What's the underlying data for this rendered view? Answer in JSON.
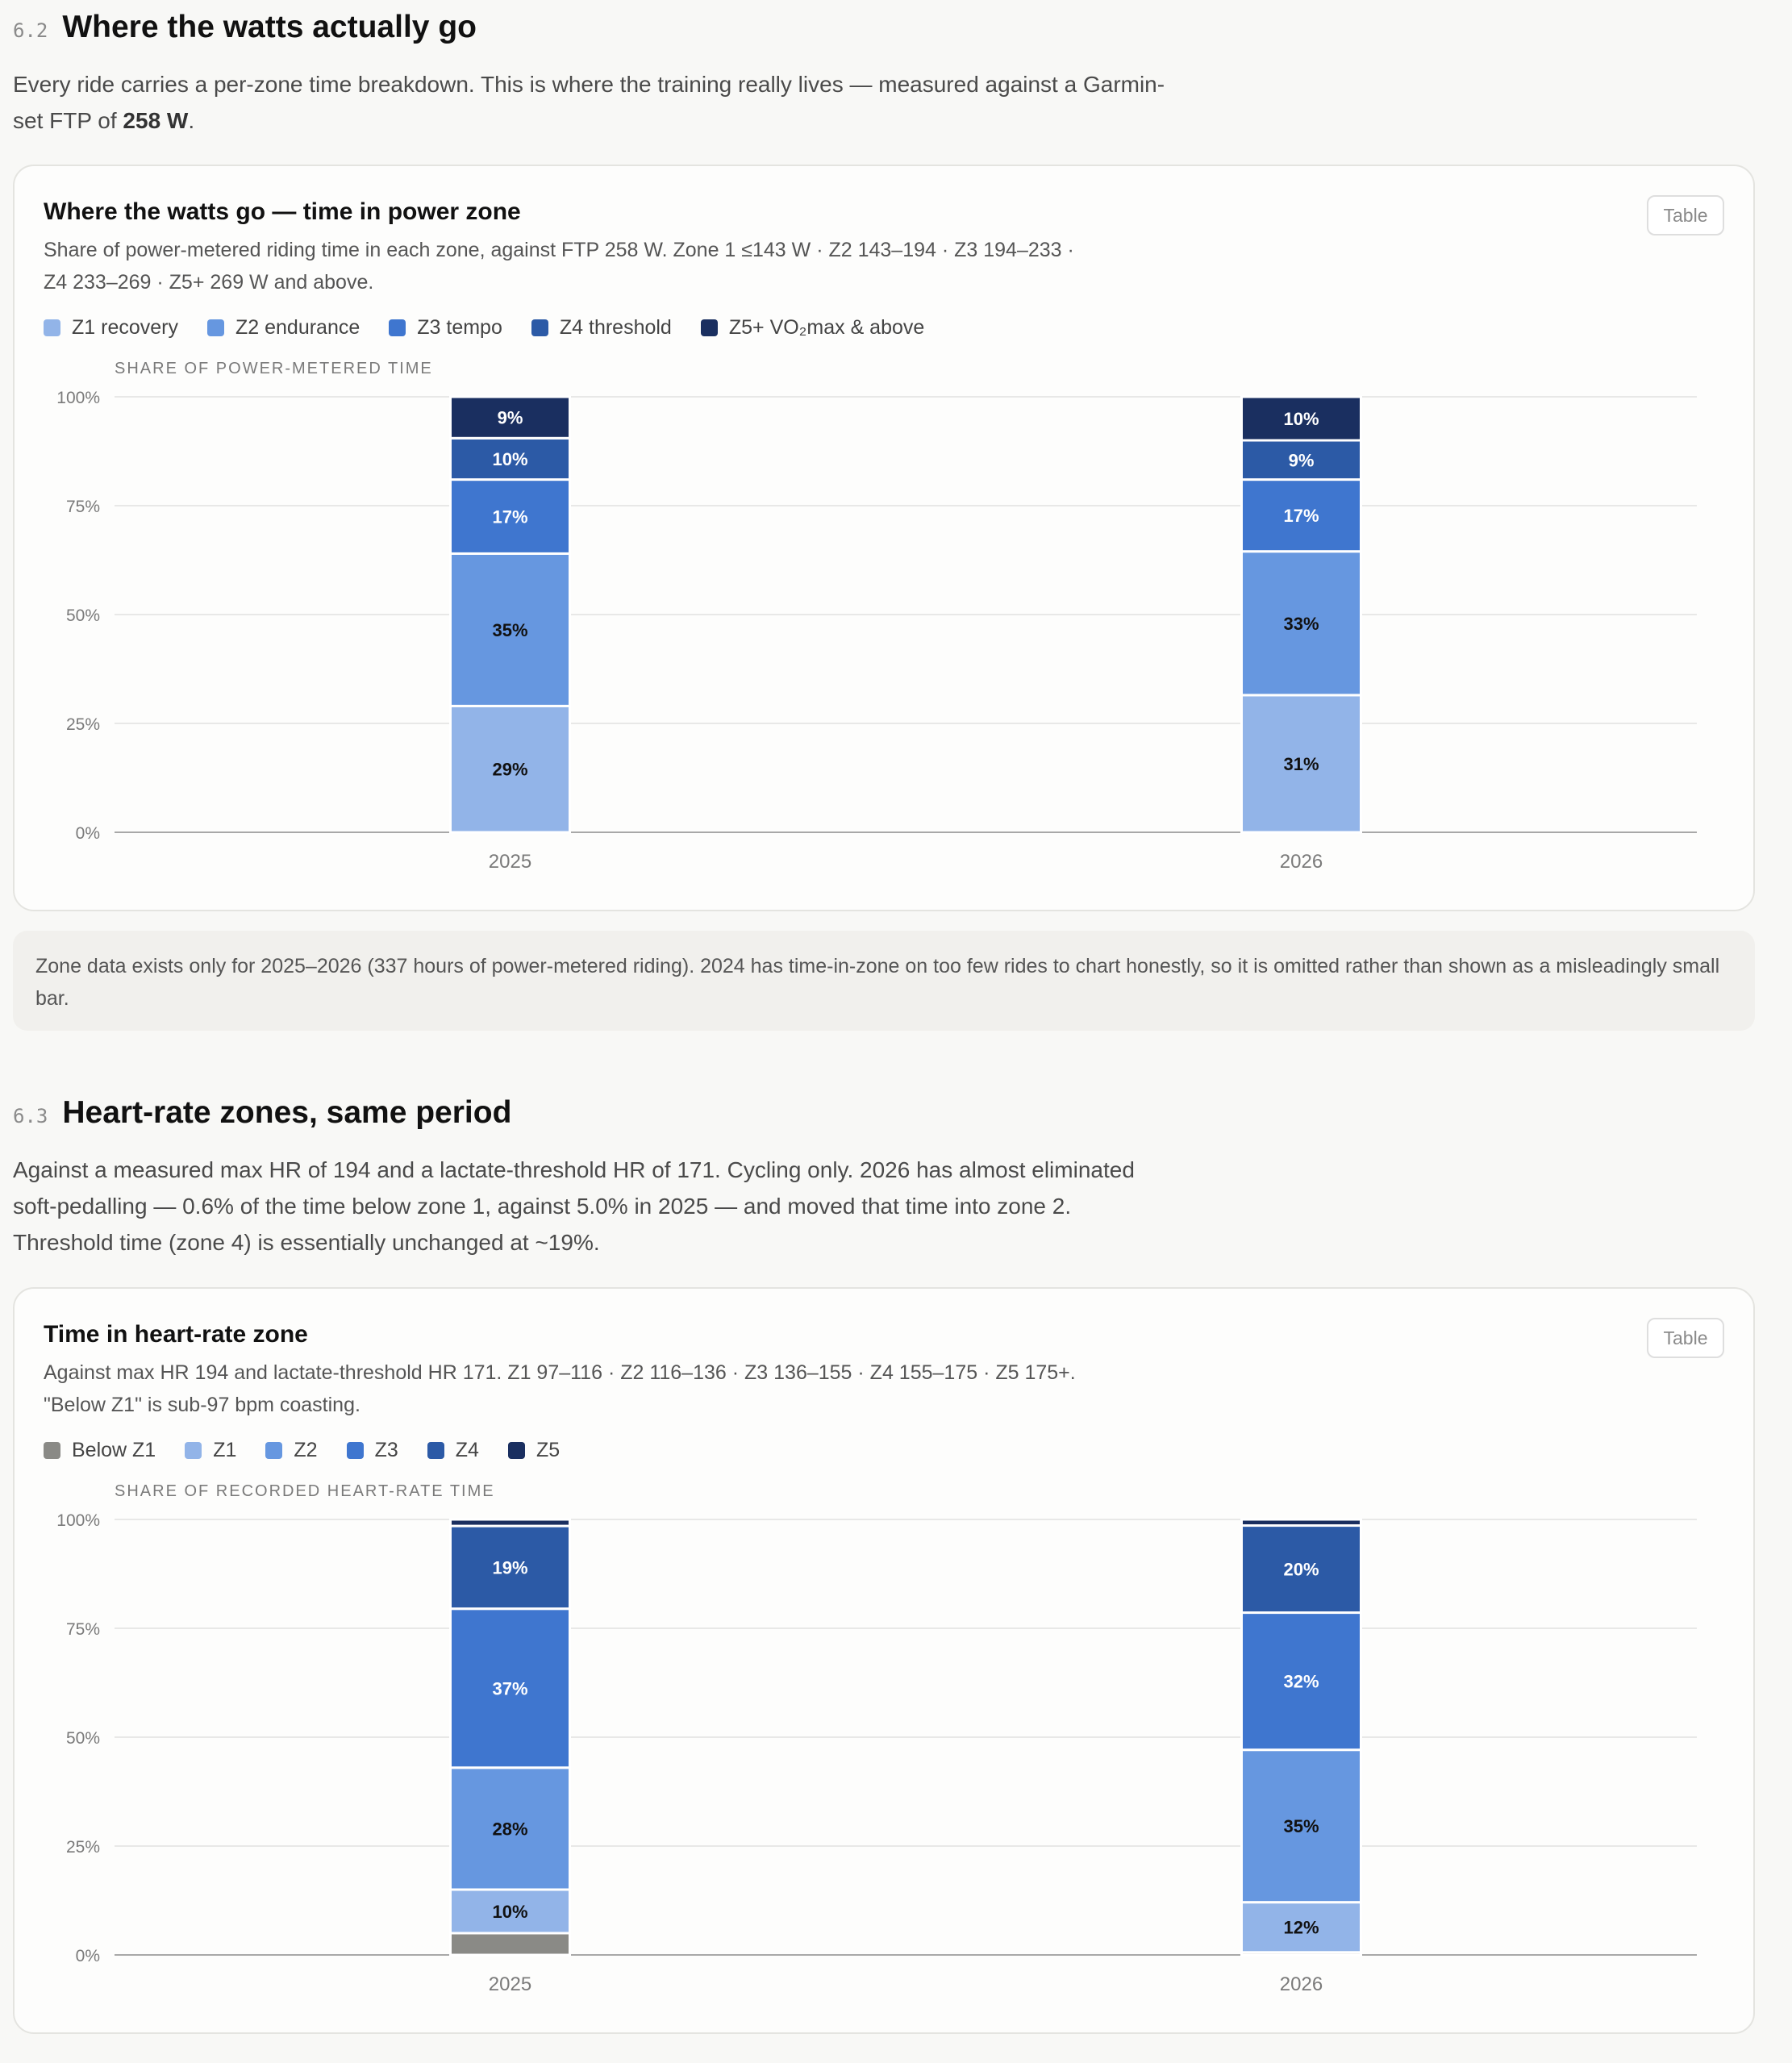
{
  "section_62": {
    "number": "6.2",
    "title": "Where the watts actually go",
    "lead_before": "Every ride carries a per-zone time breakdown. This is where the training really lives — measured against a Garmin-set FTP of ",
    "lead_bold": "258 W",
    "lead_after": "."
  },
  "power_card": {
    "title": "Where the watts go — time in power zone",
    "subtitle": "Share of power-metered riding time in each zone, against FTP 258 W. Zone 1 ≤143 W · Z2 143–194 · Z3 194–233 · Z4 233–269 · Z5+ 269 W and above.",
    "table_label": "Table",
    "y_axis_label": "SHARE OF POWER-METERED TIME",
    "legend": [
      "Z1 recovery",
      "Z2 endurance",
      "Z3 tempo",
      "Z4 threshold",
      "Z5+ VO₂max & above"
    ]
  },
  "note": "Zone data exists only for 2025–2026 (337 hours of power-metered riding). 2024 has time-in-zone on too few rides to chart honestly, so it is omitted rather than shown as a misleadingly small bar.",
  "section_63": {
    "number": "6.3",
    "title": "Heart-rate zones, same period",
    "lead": "Against a measured max HR of 194 and a lactate-threshold HR of 171. Cycling only. 2026 has almost eliminated soft-pedalling — 0.6% of the time below zone 1, against 5.0% in 2025 — and moved that time into zone 2. Threshold time (zone 4) is essentially unchanged at ~19%."
  },
  "hr_card": {
    "title": "Time in heart-rate zone",
    "subtitle": "Against max HR 194 and lactate-threshold HR 171. Z1 97–116 · Z2 116–136 · Z3 136–155 · Z4 155–175 · Z5 175+. \"Below Z1\" is sub-97 bpm coasting.",
    "table_label": "Table",
    "y_axis_label": "SHARE OF RECORDED HEART-RATE TIME",
    "legend": [
      "Below Z1",
      "Z1",
      "Z2",
      "Z3",
      "Z4",
      "Z5"
    ]
  },
  "chart_data": [
    {
      "type": "bar",
      "stacked": true,
      "title": "Where the watts go — time in power zone",
      "ylabel": "SHARE OF POWER-METERED TIME",
      "categories": [
        "2025",
        "2026"
      ],
      "ylim": [
        0,
        100
      ],
      "yticks": [
        "0%",
        "25%",
        "50%",
        "75%",
        "100%"
      ],
      "grid": true,
      "legend_position": "top-left",
      "series": [
        {
          "name": "Z1 recovery",
          "values": [
            29,
            31.5
          ],
          "labels": [
            "29%",
            "31%"
          ],
          "color": "#92b4e8",
          "text_color": "#111"
        },
        {
          "name": "Z2 endurance",
          "values": [
            35,
            33
          ],
          "labels": [
            "35%",
            "33%"
          ],
          "color": "#6697e0",
          "text_color": "#111"
        },
        {
          "name": "Z3 tempo",
          "values": [
            17,
            16.5
          ],
          "labels": [
            "17%",
            "17%"
          ],
          "color": "#3f76cf",
          "text_color": "#fff"
        },
        {
          "name": "Z4 threshold",
          "values": [
            9.5,
            9
          ],
          "labels": [
            "10%",
            "9%"
          ],
          "color": "#2c5aa6",
          "text_color": "#fff"
        },
        {
          "name": "Z5+ VO₂max & above",
          "values": [
            9.5,
            10
          ],
          "labels": [
            "9%",
            "10%"
          ],
          "color": "#1a2f60",
          "text_color": "#fff"
        }
      ]
    },
    {
      "type": "bar",
      "stacked": true,
      "title": "Time in heart-rate zone",
      "ylabel": "SHARE OF RECORDED HEART-RATE TIME",
      "categories": [
        "2025",
        "2026"
      ],
      "ylim": [
        0,
        100
      ],
      "yticks": [
        "0%",
        "25%",
        "50%",
        "75%",
        "100%"
      ],
      "grid": true,
      "legend_position": "top-left",
      "series": [
        {
          "name": "Below Z1",
          "values": [
            5.0,
            0.6
          ],
          "labels": [
            "",
            ""
          ],
          "color": "#8a8a86",
          "text_color": "#fff"
        },
        {
          "name": "Z1",
          "values": [
            10,
            11.5
          ],
          "labels": [
            "10%",
            "12%"
          ],
          "color": "#92b4e8",
          "text_color": "#111"
        },
        {
          "name": "Z2",
          "values": [
            28,
            35
          ],
          "labels": [
            "28%",
            "35%"
          ],
          "color": "#6697e0",
          "text_color": "#111"
        },
        {
          "name": "Z3",
          "values": [
            36.5,
            31.5
          ],
          "labels": [
            "37%",
            "32%"
          ],
          "color": "#3f76cf",
          "text_color": "#fff"
        },
        {
          "name": "Z4",
          "values": [
            19,
            20
          ],
          "labels": [
            "19%",
            "20%"
          ],
          "color": "#2c5aa6",
          "text_color": "#fff"
        },
        {
          "name": "Z5",
          "values": [
            1.5,
            1.4
          ],
          "labels": [
            "",
            ""
          ],
          "color": "#1a2f60",
          "text_color": "#fff"
        }
      ]
    }
  ]
}
